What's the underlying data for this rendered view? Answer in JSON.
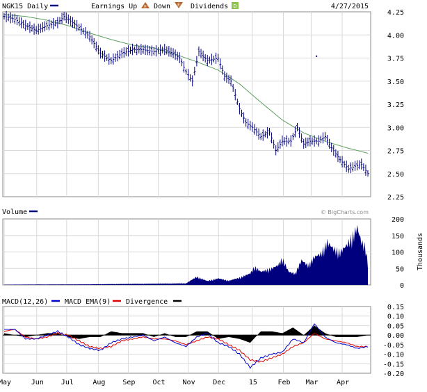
{
  "colors": {
    "price": "#00007f",
    "moving_average": "#5e9f5e",
    "volume": "#00007f",
    "macd": "#0000cc",
    "macd_ema": "#dd0000",
    "divergence": "#000000",
    "grid": "#d9d9d9",
    "frame": "#888888",
    "earnings_up_icon": "#b8652b",
    "earnings_down_icon": "#b8652b",
    "dividends_icon": "#8ec34c"
  },
  "header": {
    "symbol_label": "NGK15 Daily",
    "earnings_up": "Earnings Up",
    "down": "Down",
    "dividends": "Dividends",
    "date": "4/27/2015",
    "earnings_icon_letter": "E",
    "down_icon_letter": "E",
    "dividends_icon_letter": "D"
  },
  "volume_panel": {
    "label": "Volume",
    "watermark": "© BigCharts.com",
    "unit_label": "Thousands"
  },
  "macd_panel": {
    "macd_label": "MACD(12,26)",
    "ema_label": "MACD EMA(9)",
    "divergence_label": "Divergence"
  },
  "chart_data": [
    {
      "type": "ohlc",
      "panel": "price",
      "title": "NGK15 Daily",
      "ylim": [
        2.25,
        4.25
      ],
      "yticks": [
        "4.25",
        "4.00",
        "3.75",
        "3.50",
        "3.25",
        "3.00",
        "2.75",
        "2.50",
        "2.25"
      ],
      "xticks": [
        "May",
        "Jun",
        "Jul",
        "Aug",
        "Sep",
        "Oct",
        "Nov",
        "Dec",
        "15",
        "Feb",
        "Mar",
        "Apr"
      ],
      "grid": true,
      "close_points": [
        [
          0,
          4.2
        ],
        [
          5,
          4.17
        ],
        [
          10,
          4.1
        ],
        [
          15,
          4.05
        ],
        [
          20,
          4.1
        ],
        [
          25,
          4.13
        ],
        [
          28,
          4.2
        ],
        [
          31,
          4.15
        ],
        [
          35,
          4.08
        ],
        [
          40,
          3.98
        ],
        [
          45,
          3.8
        ],
        [
          50,
          3.72
        ],
        [
          55,
          3.8
        ],
        [
          60,
          3.84
        ],
        [
          65,
          3.84
        ],
        [
          70,
          3.82
        ],
        [
          75,
          3.84
        ],
        [
          79,
          3.8
        ],
        [
          82,
          3.75
        ],
        [
          85,
          3.6
        ],
        [
          88,
          3.5
        ],
        [
          91,
          3.82
        ],
        [
          95,
          3.72
        ],
        [
          100,
          3.75
        ],
        [
          103,
          3.55
        ],
        [
          106,
          3.5
        ],
        [
          110,
          3.2
        ],
        [
          113,
          3.05
        ],
        [
          116,
          3.0
        ],
        [
          120,
          2.9
        ],
        [
          124,
          2.95
        ],
        [
          127,
          2.75
        ],
        [
          130,
          2.85
        ],
        [
          134,
          2.85
        ],
        [
          137,
          3.0
        ],
        [
          140,
          2.82
        ],
        [
          143,
          2.85
        ],
        [
          147,
          2.85
        ],
        [
          150,
          2.9
        ],
        [
          153,
          2.78
        ],
        [
          157,
          2.65
        ],
        [
          161,
          2.55
        ],
        [
          164,
          2.58
        ],
        [
          167,
          2.6
        ],
        [
          170,
          2.5
        ]
      ],
      "isolated_point": [
        146,
        3.77
      ],
      "moving_average_points": [
        [
          0,
          4.22
        ],
        [
          10,
          4.2
        ],
        [
          20,
          4.16
        ],
        [
          30,
          4.1
        ],
        [
          40,
          4.02
        ],
        [
          50,
          3.95
        ],
        [
          60,
          3.89
        ],
        [
          70,
          3.86
        ],
        [
          80,
          3.79
        ],
        [
          90,
          3.71
        ],
        [
          100,
          3.62
        ],
        [
          110,
          3.47
        ],
        [
          120,
          3.27
        ],
        [
          130,
          3.08
        ],
        [
          140,
          2.94
        ],
        [
          150,
          2.85
        ],
        [
          160,
          2.78
        ],
        [
          170,
          2.72
        ]
      ],
      "x_range_index": [
        0,
        170
      ]
    },
    {
      "type": "area",
      "panel": "volume",
      "title": "Volume",
      "unit": "Thousands",
      "ylim": [
        0,
        200
      ],
      "yticks": [
        "200",
        "150",
        "100",
        "50",
        "0"
      ],
      "x": [
        0,
        40,
        70,
        85,
        90,
        95,
        100,
        105,
        110,
        115,
        117,
        120,
        125,
        128,
        130,
        133,
        136,
        139,
        142,
        145,
        148,
        151,
        154,
        157,
        160,
        163,
        165,
        167,
        169,
        170
      ],
      "values": [
        1,
        2,
        4,
        5,
        25,
        12,
        20,
        13,
        22,
        35,
        55,
        40,
        50,
        60,
        80,
        40,
        35,
        75,
        60,
        85,
        95,
        130,
        110,
        100,
        120,
        150,
        175,
        130,
        115,
        60
      ]
    },
    {
      "type": "line",
      "panel": "macd",
      "ylim": [
        -0.2,
        0.15
      ],
      "yticks": [
        "0.15",
        "0.10",
        "0.05",
        "0.00",
        "-0.05",
        "-0.10",
        "-0.15",
        "-0.20"
      ],
      "series": [
        {
          "name": "MACD(12,26)",
          "points": [
            [
              0,
              0.03
            ],
            [
              5,
              0.03
            ],
            [
              10,
              -0.02
            ],
            [
              15,
              -0.02
            ],
            [
              20,
              0.0
            ],
            [
              25,
              0.02
            ],
            [
              30,
              -0.01
            ],
            [
              35,
              -0.05
            ],
            [
              40,
              -0.07
            ],
            [
              45,
              -0.08
            ],
            [
              50,
              -0.04
            ],
            [
              55,
              -0.02
            ],
            [
              60,
              -0.01
            ],
            [
              65,
              0.0
            ],
            [
              70,
              -0.03
            ],
            [
              75,
              -0.01
            ],
            [
              80,
              -0.04
            ],
            [
              85,
              -0.06
            ],
            [
              90,
              -0.01
            ],
            [
              95,
              0.01
            ],
            [
              100,
              -0.04
            ],
            [
              105,
              -0.06
            ],
            [
              110,
              -0.1
            ],
            [
              115,
              -0.17
            ],
            [
              120,
              -0.12
            ],
            [
              125,
              -0.1
            ],
            [
              130,
              -0.09
            ],
            [
              135,
              -0.02
            ],
            [
              140,
              -0.04
            ],
            [
              145,
              0.06
            ],
            [
              150,
              -0.01
            ],
            [
              155,
              -0.04
            ],
            [
              160,
              -0.05
            ],
            [
              165,
              -0.07
            ],
            [
              170,
              -0.06
            ]
          ]
        },
        {
          "name": "MACD EMA(9)",
          "points": [
            [
              0,
              0.02
            ],
            [
              5,
              0.03
            ],
            [
              10,
              -0.01
            ],
            [
              15,
              -0.02
            ],
            [
              20,
              -0.01
            ],
            [
              25,
              0.01
            ],
            [
              30,
              0.0
            ],
            [
              35,
              -0.03
            ],
            [
              40,
              -0.06
            ],
            [
              45,
              -0.07
            ],
            [
              50,
              -0.06
            ],
            [
              55,
              -0.03
            ],
            [
              60,
              -0.02
            ],
            [
              65,
              -0.01
            ],
            [
              70,
              -0.02
            ],
            [
              75,
              -0.02
            ],
            [
              80,
              -0.03
            ],
            [
              85,
              -0.05
            ],
            [
              90,
              -0.03
            ],
            [
              95,
              -0.01
            ],
            [
              100,
              -0.02
            ],
            [
              105,
              -0.05
            ],
            [
              110,
              -0.08
            ],
            [
              115,
              -0.13
            ],
            [
              120,
              -0.14
            ],
            [
              125,
              -0.12
            ],
            [
              130,
              -0.1
            ],
            [
              135,
              -0.06
            ],
            [
              140,
              -0.04
            ],
            [
              145,
              0.01
            ],
            [
              150,
              -0.02
            ],
            [
              155,
              -0.03
            ],
            [
              160,
              -0.04
            ],
            [
              165,
              -0.06
            ],
            [
              170,
              -0.06
            ]
          ]
        }
      ],
      "divergence": {
        "name": "Divergence",
        "points": [
          [
            0,
            0.01
          ],
          [
            5,
            0.0
          ],
          [
            10,
            -0.01
          ],
          [
            15,
            0.0
          ],
          [
            20,
            0.01
          ],
          [
            25,
            0.01
          ],
          [
            30,
            -0.01
          ],
          [
            35,
            -0.02
          ],
          [
            40,
            -0.01
          ],
          [
            45,
            -0.01
          ],
          [
            50,
            0.02
          ],
          [
            55,
            0.01
          ],
          [
            60,
            0.01
          ],
          [
            65,
            0.01
          ],
          [
            70,
            -0.01
          ],
          [
            75,
            0.01
          ],
          [
            80,
            -0.01
          ],
          [
            85,
            -0.01
          ],
          [
            90,
            0.02
          ],
          [
            95,
            0.02
          ],
          [
            100,
            -0.02
          ],
          [
            105,
            -0.01
          ],
          [
            110,
            -0.02
          ],
          [
            115,
            -0.04
          ],
          [
            120,
            0.02
          ],
          [
            125,
            0.02
          ],
          [
            130,
            0.01
          ],
          [
            135,
            0.04
          ],
          [
            140,
            0.0
          ],
          [
            145,
            0.05
          ],
          [
            150,
            0.01
          ],
          [
            155,
            -0.01
          ],
          [
            160,
            -0.01
          ],
          [
            165,
            -0.01
          ],
          [
            170,
            0.0
          ]
        ]
      },
      "xticks": [
        "May",
        "Jun",
        "Jul",
        "Aug",
        "Sep",
        "Oct",
        "Nov",
        "Dec",
        "15",
        "Feb",
        "Mar",
        "Apr"
      ]
    }
  ]
}
